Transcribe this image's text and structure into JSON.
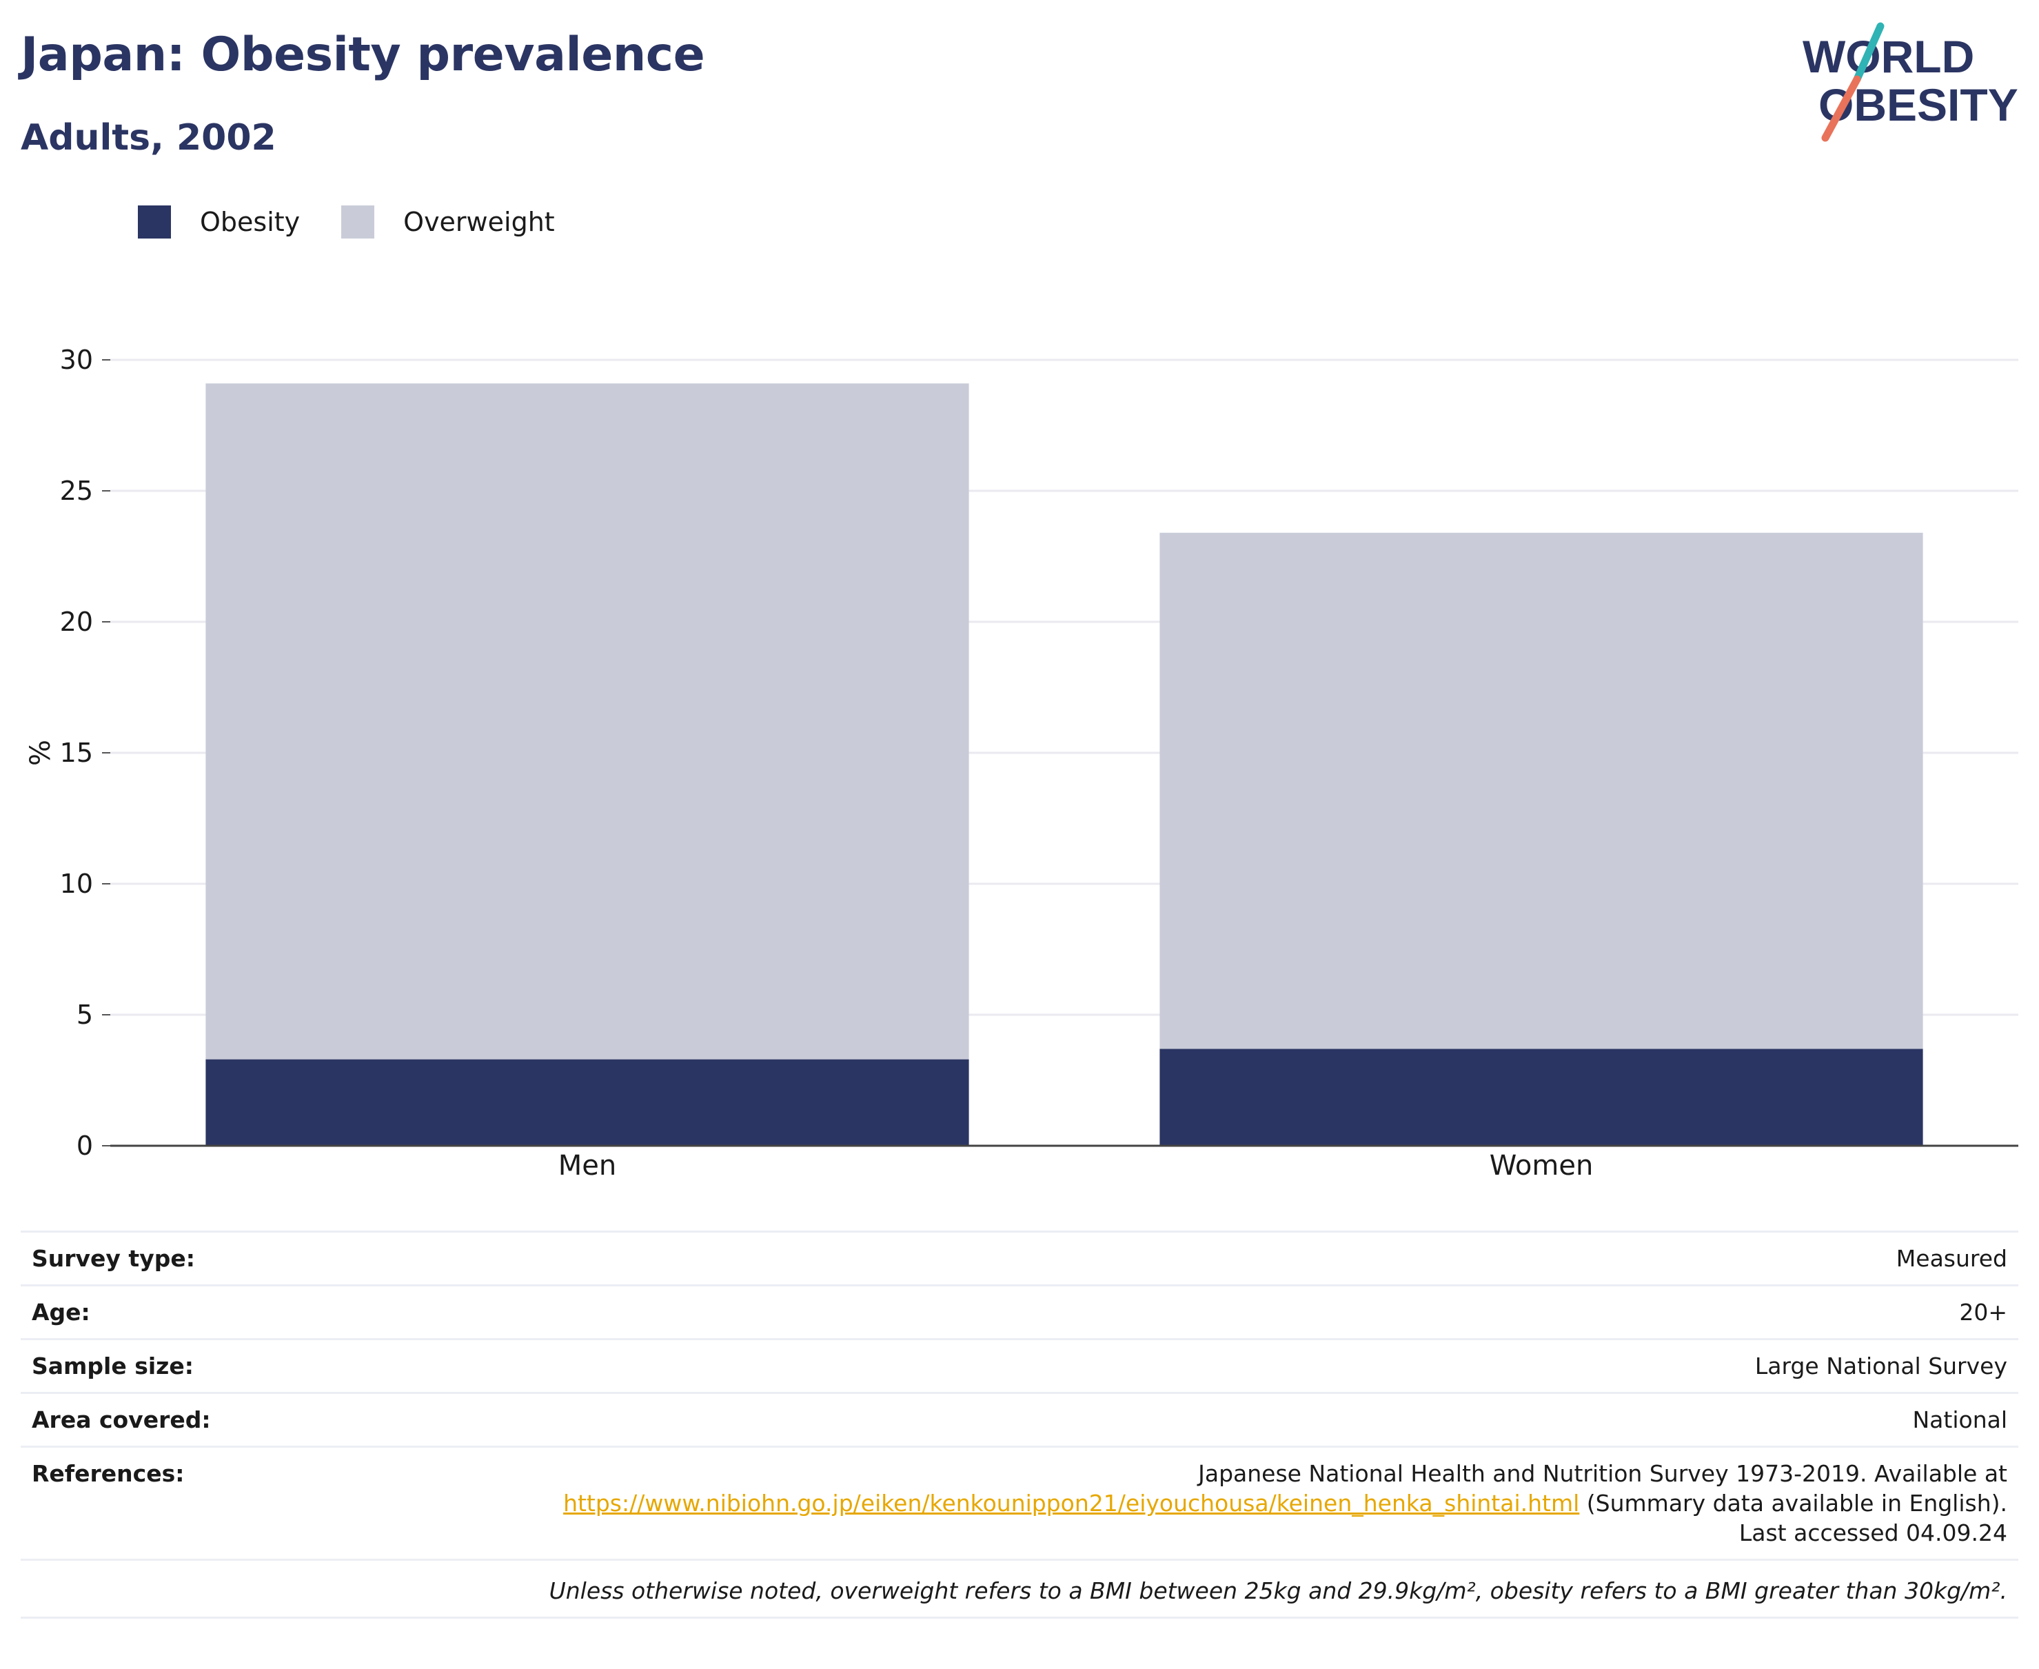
{
  "header": {
    "title": "Japan: Obesity prevalence",
    "subtitle": "Adults, 2002"
  },
  "logo": {
    "line1": "WORLD",
    "line2": "OBESITY",
    "colors": {
      "text": "#2b3563",
      "slash_top": "#2fb3b4",
      "slash_bottom": "#e8735a"
    }
  },
  "legend": [
    {
      "label": "Obesity",
      "color": "#2b3563"
    },
    {
      "label": "Overweight",
      "color": "#c9ccd8"
    }
  ],
  "chart_data": {
    "type": "bar",
    "stacked": true,
    "categories": [
      "Men",
      "Women"
    ],
    "series": [
      {
        "name": "Obesity",
        "color": "#2b3563",
        "values": [
          3.3,
          3.7
        ]
      },
      {
        "name": "Overweight",
        "color": "#c9ccd8",
        "values": [
          25.8,
          19.7
        ]
      }
    ],
    "xlabel": "",
    "ylabel": "%",
    "ylim": [
      0,
      30
    ],
    "yticks": [
      0,
      5,
      10,
      15,
      20,
      25,
      30
    ],
    "grid": true,
    "legend_position": "top-left"
  },
  "meta": {
    "rows": [
      {
        "key": "Survey type:",
        "value": "Measured"
      },
      {
        "key": "Age:",
        "value": "20+"
      },
      {
        "key": "Sample size:",
        "value": "Large National Survey"
      },
      {
        "key": "Area covered:",
        "value": "National"
      }
    ],
    "references": {
      "key": "References:",
      "before": "Japanese National Health and Nutrition Survey 1973-2019. Available at",
      "link": "https://www.nibiohn.go.jp/eiken/kenkounippon21/eiyouchousa/keinen_henka_shintai.html",
      "after": " (Summary data available in English). Last accessed 04.09.24"
    },
    "footnote": "Unless otherwise noted, overweight refers to a BMI between 25kg and 29.9kg/m², obesity refers to a BMI greater than 30kg/m²."
  }
}
